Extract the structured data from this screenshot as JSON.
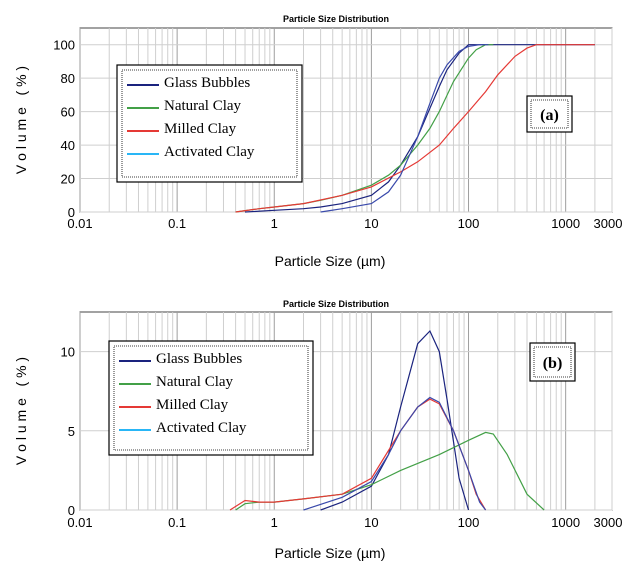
{
  "chart_data": [
    {
      "type": "line",
      "title": "Particle Size Distribution",
      "panel_label": "(a)",
      "xlabel": "Particle Size (µm)",
      "ylabel": "V o l u m e   ( % )",
      "xscale": "log",
      "xlim": [
        0.01,
        3000
      ],
      "ylim": [
        0,
        110
      ],
      "xticks": [
        "0.01",
        "0.1",
        "1",
        "10",
        "100",
        "1000",
        "3000"
      ],
      "yticks": [
        "0",
        "20",
        "40",
        "60",
        "80",
        "100"
      ],
      "legend": {
        "placement": "left",
        "entries": [
          "Glass Bubbles",
          "Natural Clay",
          "Milled Clay",
          "Activated Clay"
        ]
      },
      "grid": true,
      "series": [
        {
          "name": "Glass Bubbles",
          "color": "#1a237e",
          "x": [
            0.5,
            1,
            2,
            3,
            5,
            10,
            15,
            20,
            30,
            40,
            50,
            60,
            80,
            100,
            120,
            150,
            200,
            2000
          ],
          "y": [
            0,
            1,
            2,
            3,
            5,
            10,
            18,
            28,
            45,
            62,
            75,
            85,
            95,
            100,
            100,
            100,
            100,
            100
          ]
        },
        {
          "name": "Natural Clay",
          "color": "#43a047",
          "x": [
            0.4,
            0.7,
            1,
            2,
            3,
            5,
            10,
            15,
            20,
            30,
            40,
            50,
            70,
            100,
            120,
            150,
            180
          ],
          "y": [
            0,
            2,
            3,
            5,
            7,
            10,
            16,
            22,
            28,
            40,
            50,
            60,
            78,
            92,
            97,
            100,
            100
          ]
        },
        {
          "name": "Milled Clay",
          "color": "#e53935",
          "x": [
            0.4,
            0.7,
            1,
            2,
            5,
            10,
            20,
            30,
            50,
            70,
            100,
            150,
            200,
            300,
            400,
            500,
            2000
          ],
          "y": [
            0,
            2,
            3,
            5,
            10,
            15,
            24,
            30,
            40,
            50,
            60,
            72,
            82,
            93,
            98,
            100,
            100
          ]
        },
        {
          "name": "Activated Clay",
          "color": "#29b6f6",
          "x": [],
          "y": []
        },
        {
          "name": "",
          "color": "#3949ab",
          "x": [
            3,
            5,
            10,
            15,
            20,
            30,
            40,
            50,
            60,
            80,
            100,
            130,
            160
          ],
          "y": [
            0,
            2,
            5,
            12,
            22,
            45,
            65,
            80,
            88,
            96,
            99,
            100,
            100
          ]
        }
      ]
    },
    {
      "type": "line",
      "title": "Particle Size Distribution",
      "panel_label": "(b)",
      "xlabel": "Particle Size (µm)",
      "ylabel": "V o l u m e   ( % )",
      "xscale": "log",
      "xlim": [
        0.01,
        3000
      ],
      "ylim": [
        0,
        12.5
      ],
      "xticks": [
        "0.01",
        "0.1",
        "1",
        "10",
        "100",
        "1000",
        "3000"
      ],
      "yticks": [
        "0",
        "5",
        "10"
      ],
      "legend": {
        "placement": "left",
        "entries": [
          "Glass Bubbles",
          "Natural Clay",
          "Milled Clay",
          "Activated Clay"
        ]
      },
      "grid": true,
      "series": [
        {
          "name": "Glass Bubbles",
          "color": "#1a237e",
          "x": [
            3,
            5,
            10,
            15,
            20,
            30,
            40,
            50,
            60,
            80,
            100
          ],
          "y": [
            0,
            0.5,
            1.5,
            3.5,
            6.5,
            10.5,
            11.3,
            10,
            7,
            2,
            0
          ]
        },
        {
          "name": "Natural Clay",
          "color": "#43a047",
          "x": [
            0.4,
            0.5,
            0.7,
            1,
            2,
            5,
            10,
            20,
            50,
            100,
            150,
            180,
            250,
            400,
            600
          ],
          "y": [
            0,
            0.4,
            0.5,
            0.5,
            0.7,
            1,
            1.6,
            2.5,
            3.5,
            4.4,
            4.9,
            4.8,
            3.5,
            1,
            0
          ]
        },
        {
          "name": "Milled Clay",
          "color": "#e53935",
          "x": [
            0.35,
            0.5,
            0.7,
            1,
            2,
            5,
            10,
            20,
            30,
            40,
            50,
            70,
            100,
            120,
            150
          ],
          "y": [
            0,
            0.6,
            0.5,
            0.5,
            0.7,
            1,
            2,
            5,
            6.5,
            7,
            6.7,
            5,
            2.5,
            1,
            0
          ]
        },
        {
          "name": "Activated Clay",
          "color": "#29b6f6",
          "x": [],
          "y": []
        },
        {
          "name": "",
          "color": "#3949ab",
          "x": [
            2,
            5,
            10,
            15,
            20,
            30,
            40,
            50,
            70,
            100,
            130,
            150
          ],
          "y": [
            0,
            0.8,
            1.8,
            3.5,
            5,
            6.5,
            7.1,
            6.8,
            5,
            2.5,
            0.5,
            0
          ]
        }
      ]
    }
  ]
}
